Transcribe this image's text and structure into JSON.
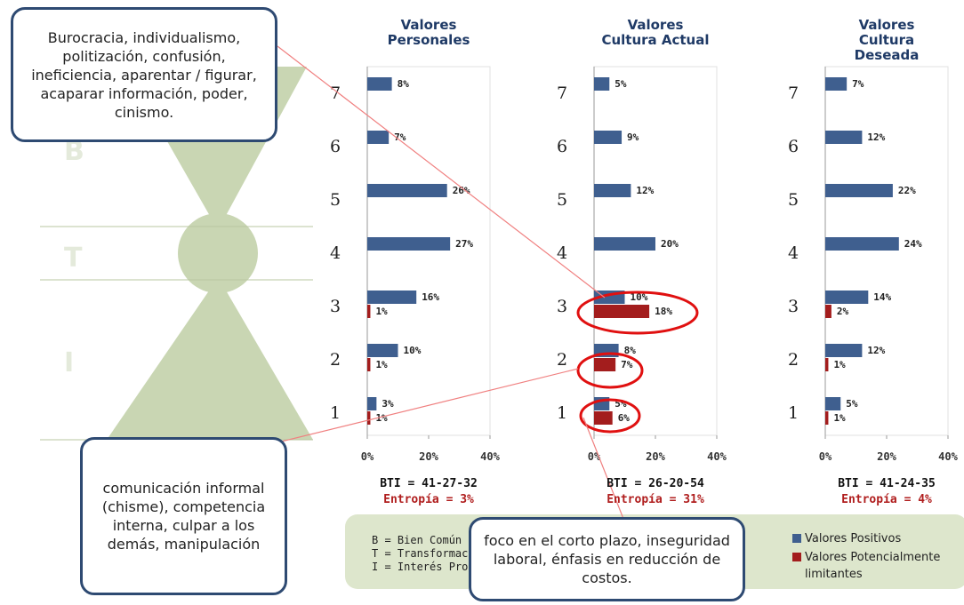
{
  "chart_data": [
    {
      "type": "bar",
      "orientation": "horizontal",
      "title": "Valores Personales",
      "categories": [
        "1",
        "2",
        "3",
        "4",
        "5",
        "6",
        "7"
      ],
      "series": [
        {
          "name": "Valores Positivos",
          "color": "#3f5f8f",
          "values": [
            3,
            10,
            16,
            27,
            26,
            7,
            8
          ],
          "value_labels": [
            "3%",
            "10%",
            "16%",
            "27%",
            "26%",
            "7%",
            "8%"
          ]
        },
        {
          "name": "Valores Potencialmente limitantes",
          "color": "#a31d1d",
          "values": [
            1,
            1,
            1,
            null,
            null,
            null,
            null
          ],
          "value_labels": [
            "1%",
            "1%",
            "1%",
            null,
            null,
            null,
            null
          ]
        }
      ],
      "xlim": [
        0,
        40
      ],
      "xticks": [
        {
          "value": 0,
          "label": "0%"
        },
        {
          "value": 20,
          "label": "20%"
        },
        {
          "value": 40,
          "label": "40%"
        }
      ],
      "annotations": [
        "BTI = 41-27-32",
        "Entropía = 3%"
      ]
    },
    {
      "type": "bar",
      "orientation": "horizontal",
      "title": "Valores Cultura Actual",
      "categories": [
        "1",
        "2",
        "3",
        "4",
        "5",
        "6",
        "7"
      ],
      "series": [
        {
          "color": "#3f5f8f",
          "values": [
            5,
            8,
            10,
            20,
            12,
            9,
            5
          ],
          "value_labels": [
            "5%",
            "8%",
            "10%",
            "20%",
            "12%",
            "9%",
            "5%"
          ]
        },
        {
          "color": "#a31d1d",
          "values": [
            6,
            7,
            18,
            null,
            null,
            null,
            null
          ],
          "value_labels": [
            "6%",
            "7%",
            "18%",
            null,
            null,
            null,
            null
          ]
        }
      ],
      "xlim": [
        0,
        40
      ],
      "xticks": [
        {
          "value": 0,
          "label": "0%"
        },
        {
          "value": 20,
          "label": "20%"
        },
        {
          "value": 40,
          "label": "40%"
        }
      ],
      "annotations": [
        "BTI = 26-20-54",
        "Entropía = 31%"
      ]
    },
    {
      "type": "bar",
      "orientation": "horizontal",
      "title": "Valores Cultura Deseada",
      "categories": [
        "1",
        "2",
        "3",
        "4",
        "5",
        "6",
        "7"
      ],
      "series": [
        {
          "color": "#3f5f8f",
          "values": [
            5,
            12,
            14,
            24,
            22,
            12,
            7
          ],
          "value_labels": [
            "5%",
            "12%",
            "14%",
            "24%",
            "22%",
            "12%",
            "7%"
          ]
        },
        {
          "color": "#a31d1d",
          "values": [
            1,
            1,
            2,
            null,
            null,
            null,
            null
          ],
          "value_labels": [
            "1%",
            "1%",
            "2%",
            null,
            null,
            null,
            null
          ]
        }
      ],
      "xlim": [
        0,
        40
      ],
      "xticks": [
        {
          "value": 0,
          "label": "0%"
        },
        {
          "value": 20,
          "label": "20%"
        },
        {
          "value": 40,
          "label": "40%"
        }
      ],
      "annotations": [
        "BTI = 41-24-35",
        "Entropía = 4%"
      ]
    }
  ],
  "pyramid": {
    "levels": [
      "B",
      "T",
      "I"
    ]
  },
  "legend": {
    "items": [
      "B = Bien Común",
      "T = Transformación",
      "I = Interés Propio"
    ]
  },
  "callouts": [
    "Burocracia, individualismo, politización, confusión, ineficiencia, aparentar / figurar, acaparar información, poder, cinismo.",
    "comunicación informal (chisme), competencia interna, culpar a los demás, manipulación",
    "foco en el corto plazo, inseguridad laboral, énfasis en reducción de costos."
  ]
}
